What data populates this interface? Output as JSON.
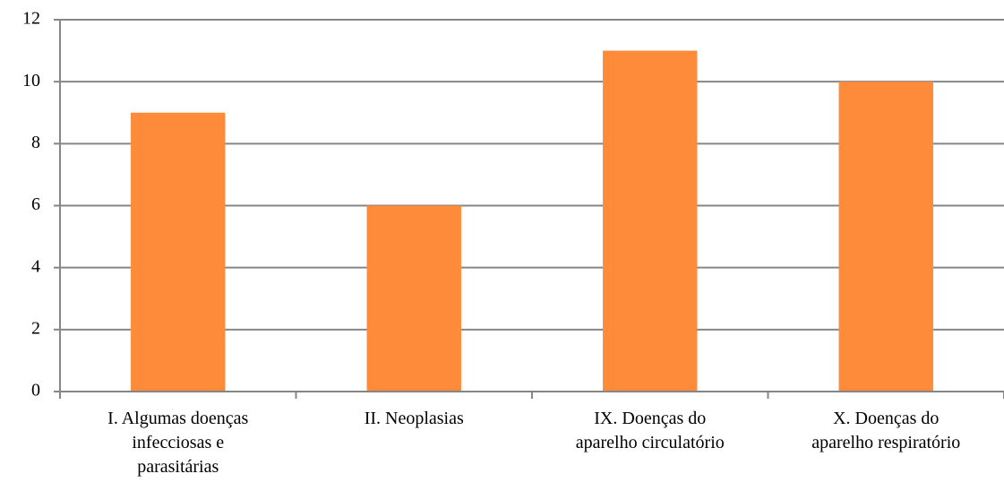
{
  "chart_data": {
    "type": "bar",
    "categories": [
      "I. Algumas doenças\ninfecciosas e\nparasitárias",
      "II. Neoplasias",
      "IX. Doenças do\naparelho circulatório",
      "X. Doenças do\naparelho respiratório"
    ],
    "values": [
      9,
      6,
      11,
      10
    ],
    "color": "#fd8b3a",
    "ylim": [
      0,
      12
    ],
    "yticks": [
      0,
      2,
      4,
      6,
      8,
      10,
      12
    ],
    "grid": true
  }
}
